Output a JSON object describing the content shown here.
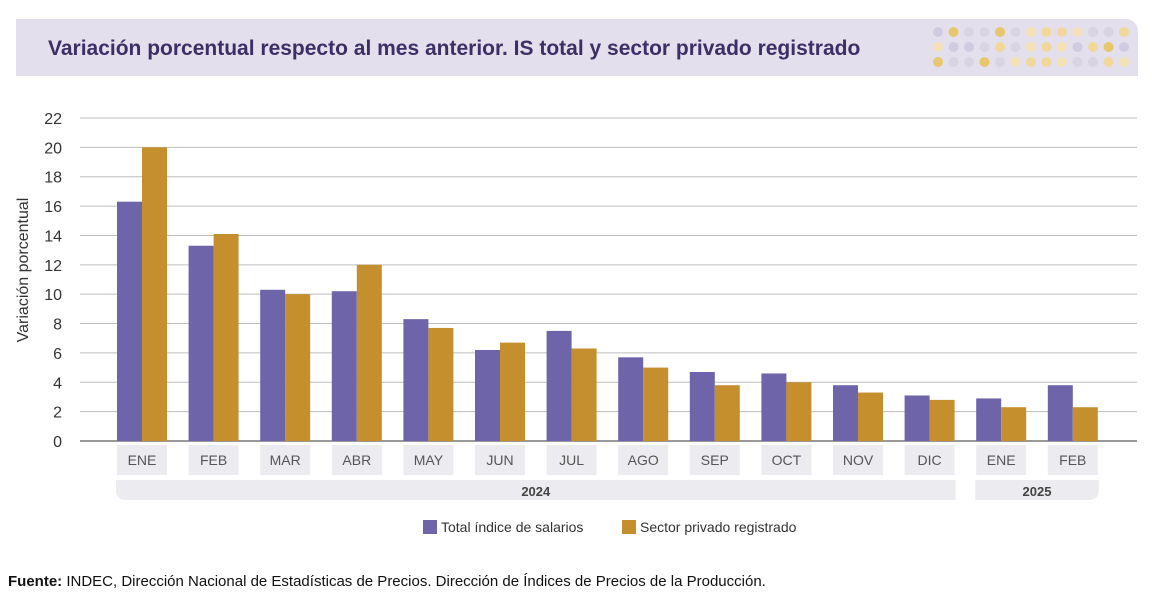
{
  "header": {
    "title": "Variación porcentual respecto al mes anterior. IS total y sector privado registrado"
  },
  "source": {
    "label": "Fuente:",
    "text": "INDEC, Dirección Nacional de Estadísticas de Precios. Dirección de Índices de Precios de la Producción."
  },
  "chart_data": {
    "type": "bar",
    "title": "Variación porcentual respecto al mes anterior. IS total y sector privado registrado",
    "ylabel": "Variación porcentual",
    "xlabel": "",
    "ylim": [
      0,
      22
    ],
    "yticks": [
      0,
      2,
      4,
      6,
      8,
      10,
      12,
      14,
      16,
      18,
      20,
      22
    ],
    "grid": true,
    "legend_position": "bottom",
    "categories": [
      "ENE",
      "FEB",
      "MAR",
      "ABR",
      "MAY",
      "JUN",
      "JUL",
      "AGO",
      "SEP",
      "OCT",
      "NOV",
      "DIC",
      "ENE",
      "FEB"
    ],
    "groups": [
      {
        "label": "2024",
        "start": 0,
        "end": 11
      },
      {
        "label": "2025",
        "start": 12,
        "end": 13
      }
    ],
    "series": [
      {
        "name": "Total índice de salarios",
        "color": "#6e64aa",
        "values": [
          16.3,
          13.3,
          10.3,
          10.2,
          8.3,
          6.2,
          7.5,
          5.7,
          4.7,
          4.6,
          3.8,
          3.1,
          2.9,
          3.8
        ]
      },
      {
        "name": "Sector privado registrado",
        "color": "#c48f2c",
        "values": [
          20.0,
          14.1,
          10.0,
          12.0,
          7.7,
          6.7,
          6.3,
          5.0,
          3.8,
          4.0,
          3.3,
          2.8,
          2.3,
          2.3
        ]
      }
    ]
  }
}
